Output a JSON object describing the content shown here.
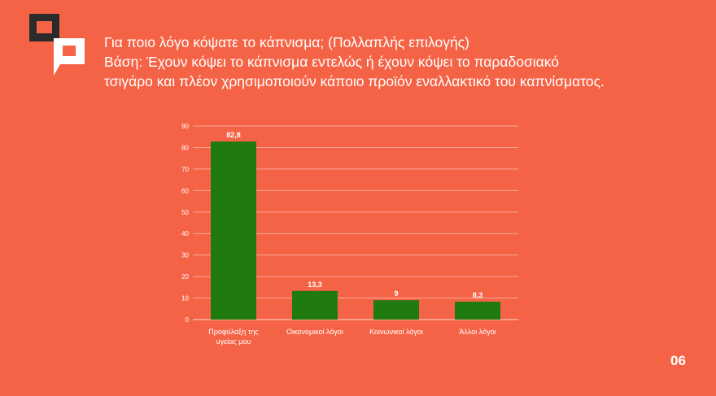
{
  "slide": {
    "title": "Για ποιο λόγο κόψατε το κάπνισμα; (Πολλαπλής επιλογής)",
    "base_line1": "Βάση: Έχουν κόψει το κάπνισμα εντελώς ή έχουν κόψει το παραδοσιακό",
    "base_line2": "τσιγάρο και πλέον χρησιμοποιούν κάποιο προϊόν εναλλακτικό του καπνίσματος.",
    "page_number": "06"
  },
  "colors": {
    "background": "#f56346",
    "bar": "#1f7a0f",
    "text": "#ffffff",
    "logo_dark": "#2b2b2b"
  },
  "chart_data": {
    "type": "bar",
    "categories": [
      [
        "Προφύλαξη της",
        "υγείας μου"
      ],
      [
        "Οικονομικοί λόγοι"
      ],
      [
        "Κοινωνικοί λόγοι"
      ],
      [
        "Άλλοι λόγοι"
      ]
    ],
    "values": [
      82.8,
      13.3,
      9,
      8.3
    ],
    "value_labels": [
      "82,8",
      "13,3",
      "9",
      "8,3"
    ],
    "ylim": [
      0,
      90
    ],
    "yticks": [
      0,
      10,
      20,
      30,
      40,
      50,
      60,
      70,
      80,
      90
    ],
    "grid": true,
    "legend": "none"
  }
}
